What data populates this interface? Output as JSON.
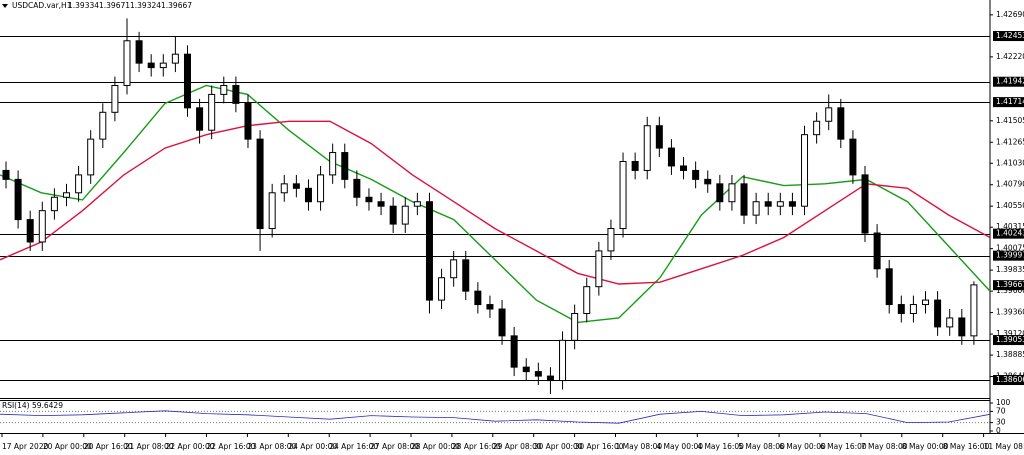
{
  "chart_data": {
    "type": "candlestick",
    "symbol": "USDCAD.var,H1",
    "header_values": [
      "1.39334",
      "1.39671",
      "1.39324",
      "1.39667"
    ],
    "open": [
      1.4095,
      1.4085,
      1.404,
      1.4015,
      1.405,
      1.4065,
      1.407,
      1.409,
      1.413,
      1.416,
      1.419,
      1.424,
      1.4215,
      1.421,
      1.4215,
      1.4225,
      1.4165,
      1.414,
      1.418,
      1.419,
      1.417,
      1.413,
      1.403,
      1.407,
      1.408,
      1.4075,
      1.406,
      1.409,
      1.4115,
      1.4085,
      1.4065,
      1.406,
      1.4055,
      1.4035,
      1.4055,
      1.406,
      1.395,
      1.3975,
      1.3995,
      1.396,
      1.3945,
      1.394,
      1.391,
      1.3875,
      1.387,
      1.3865,
      1.386,
      1.3905,
      1.3935,
      1.3965,
      1.4005,
      1.403,
      1.4105,
      1.4095,
      1.4145,
      1.412,
      1.41,
      1.4095,
      1.4085,
      1.408,
      1.406,
      1.408,
      1.4045,
      1.406,
      1.4055,
      1.406,
      1.4055,
      1.4135,
      1.415,
      1.4165,
      1.413,
      1.409,
      1.4025,
      1.3985,
      1.3945,
      1.3935,
      1.3945,
      1.395,
      1.392,
      1.393,
      1.391
    ],
    "high": [
      1.4105,
      1.4095,
      1.405,
      1.406,
      1.4075,
      1.408,
      1.41,
      1.414,
      1.417,
      1.42,
      1.4265,
      1.425,
      1.4225,
      1.4225,
      1.4245,
      1.4235,
      1.4175,
      1.419,
      1.42,
      1.42,
      1.418,
      1.414,
      1.408,
      1.409,
      1.409,
      1.4085,
      1.41,
      1.4125,
      1.4125,
      1.4095,
      1.4075,
      1.407,
      1.4065,
      1.4065,
      1.407,
      1.407,
      1.3985,
      1.4005,
      1.4005,
      1.397,
      1.3955,
      1.395,
      1.392,
      1.3885,
      1.388,
      1.3875,
      1.3915,
      1.3945,
      1.3975,
      1.4015,
      1.404,
      1.4115,
      1.4115,
      1.4155,
      1.4155,
      1.413,
      1.411,
      1.4105,
      1.4095,
      1.409,
      1.409,
      1.409,
      1.407,
      1.407,
      1.407,
      1.407,
      1.4145,
      1.416,
      1.418,
      1.4175,
      1.414,
      1.41,
      1.4035,
      1.3995,
      1.3955,
      1.3955,
      1.396,
      1.396,
      1.394,
      1.394,
      1.3971
    ],
    "low": [
      1.4075,
      1.403,
      1.4005,
      1.4005,
      1.404,
      1.4055,
      1.406,
      1.408,
      1.412,
      1.415,
      1.418,
      1.4205,
      1.42,
      1.42,
      1.4205,
      1.4155,
      1.4125,
      1.413,
      1.417,
      1.416,
      1.412,
      1.4005,
      1.402,
      1.406,
      1.4065,
      1.405,
      1.405,
      1.408,
      1.4075,
      1.4055,
      1.405,
      1.4045,
      1.4025,
      1.4025,
      1.4045,
      1.3935,
      1.394,
      1.3965,
      1.395,
      1.3935,
      1.393,
      1.39,
      1.3865,
      1.386,
      1.3855,
      1.3845,
      1.385,
      1.3895,
      1.3925,
      1.3955,
      1.3995,
      1.402,
      1.4085,
      1.4085,
      1.411,
      1.409,
      1.4085,
      1.4075,
      1.407,
      1.405,
      1.405,
      1.4035,
      1.4035,
      1.4045,
      1.4045,
      1.4045,
      1.4045,
      1.4125,
      1.414,
      1.412,
      1.408,
      1.4015,
      1.3975,
      1.3935,
      1.3925,
      1.3925,
      1.3935,
      1.391,
      1.391,
      1.39,
      1.39
    ],
    "close": [
      1.4085,
      1.404,
      1.4015,
      1.405,
      1.4065,
      1.407,
      1.409,
      1.413,
      1.416,
      1.419,
      1.424,
      1.4215,
      1.421,
      1.4215,
      1.4225,
      1.4165,
      1.414,
      1.418,
      1.419,
      1.417,
      1.413,
      1.403,
      1.407,
      1.408,
      1.4075,
      1.406,
      1.409,
      1.4115,
      1.4085,
      1.4065,
      1.406,
      1.4055,
      1.4035,
      1.4055,
      1.406,
      1.395,
      1.3975,
      1.3995,
      1.396,
      1.3945,
      1.394,
      1.391,
      1.3875,
      1.387,
      1.3865,
      1.386,
      1.3905,
      1.3935,
      1.3965,
      1.4005,
      1.403,
      1.4105,
      1.4095,
      1.4145,
      1.412,
      1.41,
      1.4095,
      1.4085,
      1.408,
      1.406,
      1.408,
      1.4045,
      1.406,
      1.4055,
      1.406,
      1.4055,
      1.4135,
      1.415,
      1.4165,
      1.413,
      1.409,
      1.4025,
      1.3985,
      1.3945,
      1.3935,
      1.3945,
      1.395,
      1.392,
      1.393,
      1.391,
      1.3967
    ],
    "up_color": "#ffffff",
    "down_color": "#000000",
    "moving_averages": [
      {
        "color": "#169c16",
        "values": [
          1.409,
          1.407,
          1.4062,
          1.4115,
          1.417,
          1.419,
          1.418,
          1.414,
          1.4105,
          1.4085,
          1.406,
          1.404,
          1.3995,
          1.395,
          1.3925,
          1.393,
          1.3975,
          1.4045,
          1.4088,
          1.4078,
          1.408,
          1.4085,
          1.406,
          1.401,
          1.396
        ]
      },
      {
        "color": "#e0103c",
        "values": [
          1.3995,
          1.4015,
          1.405,
          1.409,
          1.412,
          1.4135,
          1.4145,
          1.415,
          1.415,
          1.4125,
          1.409,
          1.406,
          1.403,
          1.4005,
          1.398,
          1.3968,
          1.397,
          1.3985,
          1.4,
          1.402,
          1.405,
          1.408,
          1.4075,
          1.4045,
          1.402
        ]
      }
    ],
    "levels": [
      {
        "value": 1.42453,
        "label": "1.42453"
      },
      {
        "value": 1.41942,
        "label": "1.41942"
      },
      {
        "value": 1.41714,
        "label": "1.41714"
      },
      {
        "value": 1.40243,
        "label": "1.40243"
      },
      {
        "value": 1.39997,
        "label": "1.39997"
      },
      {
        "value": 1.39053,
        "label": "1.39053"
      },
      {
        "value": 1.38606,
        "label": "1.38606"
      }
    ],
    "current_price": {
      "value": 1.39667,
      "label": "1.39667"
    },
    "ylim": [
      1.38405,
      1.42856
    ],
    "yticks": [
      {
        "value": 1.4269,
        "label": "1.42690"
      },
      {
        "value": 1.4222,
        "label": "1.42220"
      },
      {
        "value": 1.41505,
        "label": "1.41505"
      },
      {
        "value": 1.41265,
        "label": "1.41265"
      },
      {
        "value": 1.4103,
        "label": "1.41030"
      },
      {
        "value": 1.4079,
        "label": "1.40790"
      },
      {
        "value": 1.4055,
        "label": "1.40550"
      },
      {
        "value": 1.40315,
        "label": "1.40315"
      },
      {
        "value": 1.40075,
        "label": "1.40075"
      },
      {
        "value": 1.39835,
        "label": "1.39835"
      },
      {
        "value": 1.396,
        "label": "1.39600"
      },
      {
        "value": 1.3936,
        "label": "1.39360"
      },
      {
        "value": 1.3912,
        "label": "1.39120"
      },
      {
        "value": 1.38885,
        "label": "1.38885"
      },
      {
        "value": 1.38645,
        "label": "1.38645"
      }
    ],
    "xtick_labels": [
      "17 Apr 2020",
      "20 Apr 00:00",
      "20 Apr 16:00",
      "21 Apr 08:00",
      "22 Apr 00:00",
      "22 Apr 16:00",
      "23 Apr 08:00",
      "24 Apr 00:00",
      "24 Apr 16:00",
      "27 Apr 08:00",
      "28 Apr 00:00",
      "28 Apr 16:00",
      "29 Apr 08:00",
      "30 Apr 00:00",
      "30 Apr 16:00",
      "1 May 08:00",
      "4 May 00:00",
      "4 May 16:00",
      "5 May 08:00",
      "6 May 00:00",
      "6 May 16:00",
      "7 May 08:00",
      "8 May 00:00",
      "8 May 16:00",
      "11 May 08:00"
    ],
    "rsi": {
      "label": "RSI(14) 59.6429",
      "color": "#2a2ab8",
      "values": [
        60,
        55,
        58,
        65,
        72,
        62,
        58,
        50,
        42,
        55,
        50,
        48,
        35,
        40,
        32,
        28,
        60,
        70,
        55,
        58,
        68,
        62,
        30,
        32,
        59.6429
      ],
      "ylim": [
        0,
        100
      ],
      "yticks": [
        100,
        70,
        30,
        0
      ],
      "levels": [
        70,
        30
      ]
    }
  }
}
